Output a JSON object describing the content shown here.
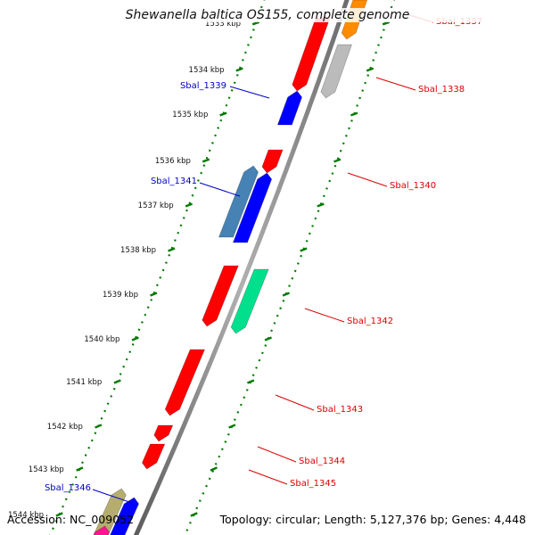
{
  "title": "Shewanella baltica OS155, complete genome",
  "footer": {
    "accession": "Accession: NC_009052",
    "summary": "Topology: circular; Length: 5,127,376 bp; Genes: 4,448"
  },
  "ticks": [
    "1533 kbp",
    "1534 kbp",
    "1535 kbp",
    "1536 kbp",
    "1537 kbp",
    "1538 kbp",
    "1539 kbp",
    "1540 kbp",
    "1541 kbp",
    "1542 kbp",
    "1543 kbp",
    "1544 kbp"
  ],
  "genes": {
    "forward": [
      "Sbal_1339",
      "Sbal_1341",
      "Sbal_1346"
    ],
    "reverse": [
      "Sbal_1337",
      "Sbal_1338",
      "Sbal_1340",
      "Sbal_1342",
      "Sbal_1343",
      "Sbal_1344",
      "Sbal_1345"
    ]
  },
  "colors": {
    "forward_label": "#0000cc",
    "reverse_label": "#dd0000",
    "backbone": "#808080",
    "tick_green": "#007a00",
    "gene_red": "#ff0000",
    "gene_blue": "#0000ff",
    "gene_steelblue": "#4682b4",
    "gene_gray": "#bbbbbb",
    "gene_aquamarine": "#00e08c",
    "gene_khaki": "#b5ad6e",
    "gene_magenta": "#ff1493",
    "gene_orange": "#ff8c00"
  }
}
